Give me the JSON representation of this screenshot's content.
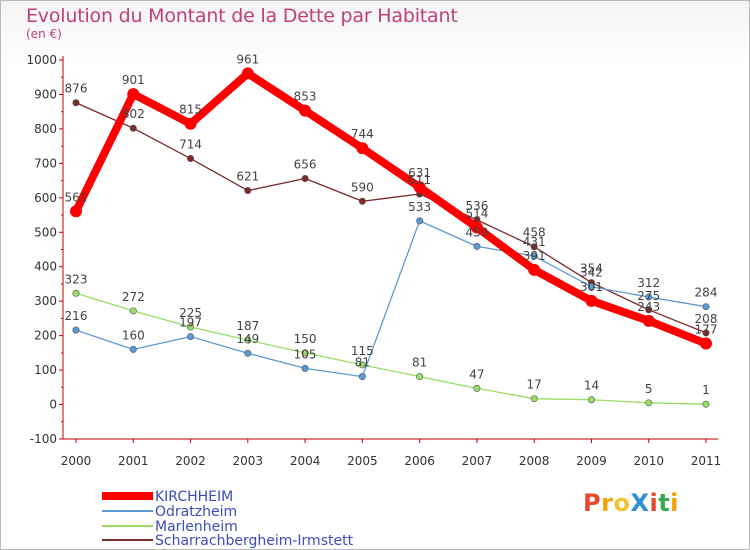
{
  "header": {
    "title": "Evolution du Montant de la Dette par Habitant",
    "subtitle": "(en €)"
  },
  "logo": {
    "text": "ProXiti",
    "colors": [
      "#e8482b",
      "#f4a300",
      "#f1c232",
      "#2f8fd8",
      "#e8482b",
      "#3aa94b",
      "#f4a300"
    ]
  },
  "chart_data": {
    "type": "line",
    "title": "Evolution du Montant de la Dette par Habitant",
    "subtitle": "(en €)",
    "xlabel": "",
    "ylabel": "",
    "x": [
      "2000",
      "2001",
      "2002",
      "2003",
      "2004",
      "2005",
      "2006",
      "2007",
      "2008",
      "2009",
      "2010",
      "2011"
    ],
    "ylim": [
      -100,
      1000
    ],
    "yticks": [
      -100,
      0,
      100,
      200,
      300,
      400,
      500,
      600,
      700,
      800,
      900,
      1000
    ],
    "grid": false,
    "legend_position": "bottom-left",
    "series": [
      {
        "name": "KIRCHHEIM",
        "color": "#ff0000",
        "values": [
          561,
          901,
          815,
          961,
          853,
          744,
          631,
          514,
          391,
          301,
          243,
          177
        ],
        "labels": [
          "561",
          "901",
          "815",
          "961",
          "853",
          "744",
          "631",
          "514",
          "391",
          "301",
          "243",
          "177"
        ]
      },
      {
        "name": "Odratzheim",
        "color": "#5b9bd5",
        "values": [
          216,
          160,
          197,
          149,
          105,
          81,
          533,
          459,
          431,
          342,
          312,
          284
        ],
        "labels": [
          "216",
          "160",
          "197",
          "149",
          "105",
          "81",
          "533",
          "459",
          "431",
          "342",
          "312",
          "284"
        ]
      },
      {
        "name": "Marlenheim",
        "color": "#99dd66",
        "values": [
          323,
          272,
          225,
          187,
          150,
          115,
          81,
          47,
          17,
          14,
          5,
          1
        ],
        "labels": [
          "323",
          "272",
          "225",
          "187",
          "150",
          "115",
          "81",
          "47",
          "17",
          "14",
          "5",
          "1"
        ]
      },
      {
        "name": "Scharrachbergheim-Irmstett",
        "color": "#7b2a2a",
        "values": [
          876,
          802,
          714,
          621,
          656,
          590,
          611,
          536,
          458,
          354,
          275,
          208
        ],
        "labels": [
          "876",
          "802",
          "714",
          "621",
          "656",
          "590",
          "611",
          "536",
          "458",
          "354",
          "275",
          "208"
        ]
      }
    ]
  }
}
